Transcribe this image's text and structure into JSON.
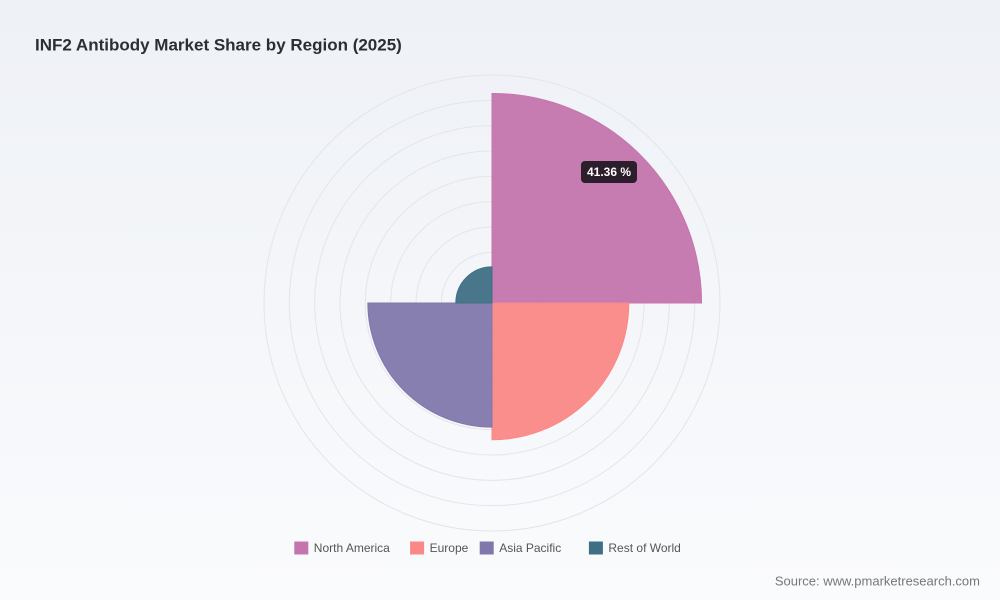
{
  "chart_data": {
    "type": "polarArea",
    "title": "INF2 Antibody Market Share by Region (2025)",
    "categories": [
      "North America",
      "Europe",
      "Asia Pacific",
      "Rest of World"
    ],
    "values": [
      41.36,
      27.0,
      24.5,
      7.14
    ],
    "colors": [
      "#c475ad",
      "#fa8886",
      "#8078ab",
      "#3f6f85"
    ],
    "rlim": [
      0,
      45
    ],
    "rticks": [
      5,
      10,
      15,
      20,
      25,
      30,
      35,
      40,
      45
    ],
    "grid": true,
    "tooltip": "41.36 %",
    "source": "Source: www.pmarketresearch.com"
  }
}
